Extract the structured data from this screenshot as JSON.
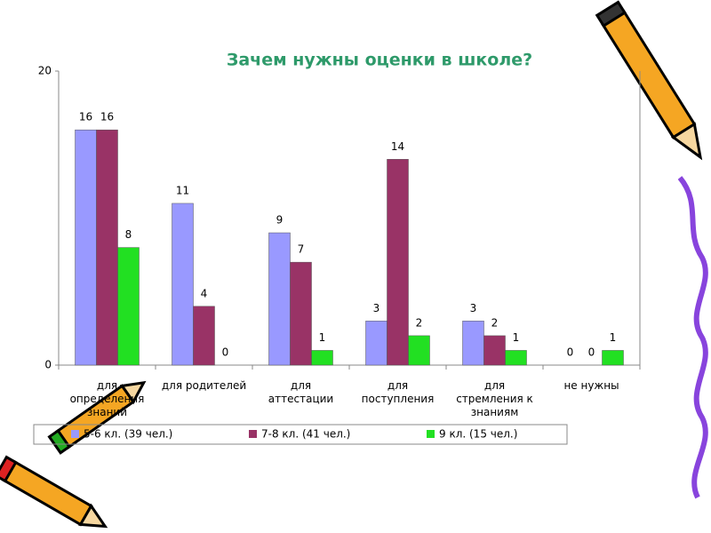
{
  "chart_data": {
    "type": "bar",
    "title": "Зачем нужны оценки в школе?",
    "categories": [
      "для определения знаний",
      "для родителей",
      "для аттестации",
      "для поступления",
      "для стремления к знаниям",
      "не нужны"
    ],
    "series": [
      {
        "name": "5-6 кл. (39 чел.)",
        "color": "#9999ff",
        "values": [
          16,
          11,
          9,
          3,
          3,
          0
        ]
      },
      {
        "name": "7-8 кл. (41 чел.)",
        "color": "#993366",
        "values": [
          16,
          4,
          7,
          14,
          2,
          0
        ]
      },
      {
        "name": "9 кл. (15 чел.)",
        "color": "#22e022",
        "values": [
          8,
          0,
          1,
          2,
          1,
          1
        ]
      }
    ],
    "ylim": [
      0,
      20
    ],
    "yticks": [
      0,
      20
    ],
    "legend": "bottom"
  }
}
